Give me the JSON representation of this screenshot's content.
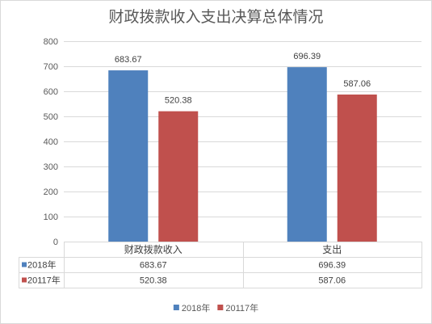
{
  "chart_data": {
    "type": "bar",
    "title": "财政拨款收入支出决算总体情况",
    "categories": [
      "财政拨款收入",
      "支出"
    ],
    "series": [
      {
        "name": "2018年",
        "values": [
          683.67,
          696.39
        ],
        "color": "#4F81BD"
      },
      {
        "name": "20117年",
        "values": [
          520.38,
          587.06
        ],
        "color": "#C0504D"
      }
    ],
    "ylim": [
      0,
      800
    ],
    "yticks": [
      0,
      100,
      200,
      300,
      400,
      500,
      600,
      700,
      800
    ],
    "grid": true,
    "legend": "bottom",
    "data_table": true
  }
}
